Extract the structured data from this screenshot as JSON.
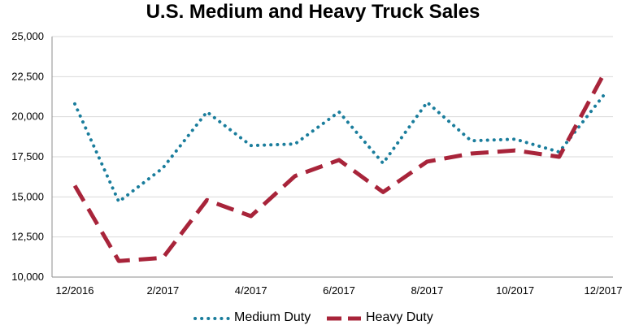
{
  "chart_data": {
    "type": "line",
    "title": "U.S. Medium and Heavy Truck Sales",
    "xlabel": "",
    "ylabel": "",
    "x": [
      "12/2016",
      "1/2017",
      "2/2017",
      "3/2017",
      "4/2017",
      "5/2017",
      "6/2017",
      "7/2017",
      "8/2017",
      "9/2017",
      "10/2017",
      "11/2017",
      "12/2017"
    ],
    "x_tick_labels": [
      "12/2016",
      "2/2017",
      "4/2017",
      "6/2017",
      "8/2017",
      "10/2017",
      "12/2017"
    ],
    "y_tick_labels": [
      "10,000",
      "12,500",
      "15,000",
      "17,500",
      "20,000",
      "22,500",
      "25,000"
    ],
    "ylim": [
      10000,
      25000
    ],
    "grid": "horizontal",
    "legend": "bottom",
    "series": [
      {
        "name": "Medium Duty",
        "color": "#1a7d9c",
        "style": "dotted",
        "values": [
          20800,
          14700,
          16800,
          20300,
          18200,
          18300,
          20300,
          17100,
          20900,
          18500,
          18600,
          17800,
          21300
        ]
      },
      {
        "name": "Heavy Duty",
        "color": "#a8243a",
        "style": "dashed",
        "values": [
          15700,
          11000,
          11200,
          14800,
          13800,
          16300,
          17300,
          15300,
          17200,
          17700,
          17900,
          17500,
          22600
        ]
      }
    ]
  }
}
